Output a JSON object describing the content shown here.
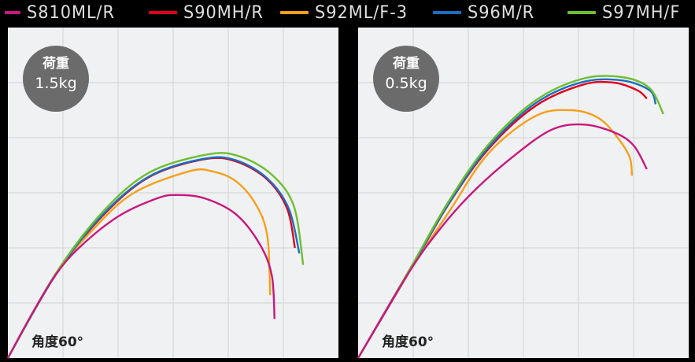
{
  "chart_data": [
    {
      "type": "line",
      "badge": {
        "line1": "荷重",
        "line2": "1.5kg"
      },
      "annotation": "角度60°",
      "grid": true,
      "xlim": [
        0,
        6
      ],
      "ylim": [
        0,
        6
      ],
      "series": [
        {
          "name": "S810ML/R",
          "color": "#c8187f",
          "points": [
            [
              0,
              0
            ],
            [
              0.43,
              0.79
            ],
            [
              0.86,
              1.5
            ],
            [
              1.29,
              2
            ],
            [
              2,
              2.57
            ],
            [
              2.71,
              2.9
            ],
            [
              3.07,
              2.96
            ],
            [
              3.57,
              2.9
            ],
            [
              4.14,
              2.61
            ],
            [
              4.57,
              2.07
            ],
            [
              4.79,
              1.5
            ],
            [
              4.84,
              0.71
            ]
          ]
        },
        {
          "name": "S90MH/R",
          "color": "#e0001a",
          "points": [
            [
              0,
              0
            ],
            [
              0.86,
              1.5
            ],
            [
              1.71,
              2.57
            ],
            [
              2.57,
              3.29
            ],
            [
              3.57,
              3.61
            ],
            [
              4.14,
              3.57
            ],
            [
              4.71,
              3.24
            ],
            [
              5.07,
              2.71
            ],
            [
              5.21,
              2
            ]
          ]
        },
        {
          "name": "S92ML/F-3",
          "color": "#f5a01a",
          "points": [
            [
              0,
              0
            ],
            [
              0.86,
              1.5
            ],
            [
              1.57,
              2.36
            ],
            [
              2.29,
              3
            ],
            [
              3.29,
              3.39
            ],
            [
              3.71,
              3.39
            ],
            [
              4.14,
              3.21
            ],
            [
              4.5,
              2.79
            ],
            [
              4.71,
              2.21
            ],
            [
              4.76,
              1.14
            ]
          ]
        },
        {
          "name": "S96M/R",
          "color": "#1a6fc0",
          "points": [
            [
              0,
              0
            ],
            [
              0.86,
              1.5
            ],
            [
              1.71,
              2.59
            ],
            [
              2.57,
              3.3
            ],
            [
              3.57,
              3.62
            ],
            [
              4.14,
              3.59
            ],
            [
              4.71,
              3.26
            ],
            [
              5.1,
              2.71
            ],
            [
              5.29,
              1.9
            ]
          ]
        },
        {
          "name": "S97MH/F",
          "color": "#6cbf2e",
          "points": [
            [
              0,
              0
            ],
            [
              0.86,
              1.52
            ],
            [
              1.71,
              2.64
            ],
            [
              2.57,
              3.37
            ],
            [
              3.64,
              3.7
            ],
            [
              4.21,
              3.66
            ],
            [
              4.79,
              3.33
            ],
            [
              5.19,
              2.76
            ],
            [
              5.36,
              1.69
            ]
          ]
        }
      ]
    },
    {
      "type": "line",
      "badge": {
        "line1": "荷重",
        "line2": "0.5kg"
      },
      "annotation": "角度60°",
      "grid": true,
      "xlim": [
        0,
        6
      ],
      "ylim": [
        0,
        6
      ],
      "series": [
        {
          "name": "S810ML/R",
          "color": "#c8187f",
          "points": [
            [
              0,
              0
            ],
            [
              0.93,
              1.57
            ],
            [
              1.5,
              2.36
            ],
            [
              2.07,
              3
            ],
            [
              2.79,
              3.64
            ],
            [
              3.5,
              4.14
            ],
            [
              4.07,
              4.24
            ],
            [
              4.64,
              4.1
            ],
            [
              5,
              3.86
            ],
            [
              5.24,
              3.43
            ]
          ]
        },
        {
          "name": "S90MH/R",
          "color": "#e0001a",
          "points": [
            [
              0,
              0
            ],
            [
              0.93,
              1.57
            ],
            [
              1.64,
              2.79
            ],
            [
              2.36,
              3.79
            ],
            [
              3.21,
              4.57
            ],
            [
              4.07,
              4.96
            ],
            [
              4.64,
              5
            ],
            [
              5.07,
              4.86
            ],
            [
              5.24,
              4.71
            ]
          ]
        },
        {
          "name": "S92ML/F-3",
          "color": "#f5a01a",
          "points": [
            [
              0,
              0
            ],
            [
              0.93,
              1.57
            ],
            [
              1.64,
              2.64
            ],
            [
              2.36,
              3.71
            ],
            [
              3.21,
              4.39
            ],
            [
              3.86,
              4.5
            ],
            [
              4.36,
              4.36
            ],
            [
              4.71,
              4
            ],
            [
              4.93,
              3.64
            ],
            [
              4.97,
              3.31
            ]
          ]
        },
        {
          "name": "S96M/R",
          "color": "#1a6fc0",
          "points": [
            [
              0,
              0
            ],
            [
              0.93,
              1.58
            ],
            [
              1.64,
              2.8
            ],
            [
              2.36,
              3.82
            ],
            [
              3.21,
              4.62
            ],
            [
              4.07,
              5.01
            ],
            [
              4.79,
              5.04
            ],
            [
              5.29,
              4.86
            ],
            [
              5.4,
              4.61
            ]
          ]
        },
        {
          "name": "S97MH/F",
          "color": "#6cbf2e",
          "points": [
            [
              0,
              0
            ],
            [
              0.93,
              1.6
            ],
            [
              1.64,
              2.84
            ],
            [
              2.36,
              3.87
            ],
            [
              3.21,
              4.67
            ],
            [
              4.07,
              5.07
            ],
            [
              4.79,
              5.1
            ],
            [
              5.29,
              4.9
            ],
            [
              5.54,
              4.43
            ]
          ]
        }
      ]
    }
  ],
  "legend": [
    {
      "label": "S810ML/R",
      "color": "#c8187f"
    },
    {
      "label": "S90MH/R",
      "color": "#e0001a"
    },
    {
      "label": "S92ML/F-3",
      "color": "#f5a01a"
    },
    {
      "label": "S96M/R",
      "color": "#1a6fc0"
    },
    {
      "label": "S97MH/F",
      "color": "#6cbf2e"
    }
  ],
  "colors": {
    "panel_bg": "#f0f1f3",
    "grid": "#d6d8db",
    "badge": "#6b6b6b"
  }
}
